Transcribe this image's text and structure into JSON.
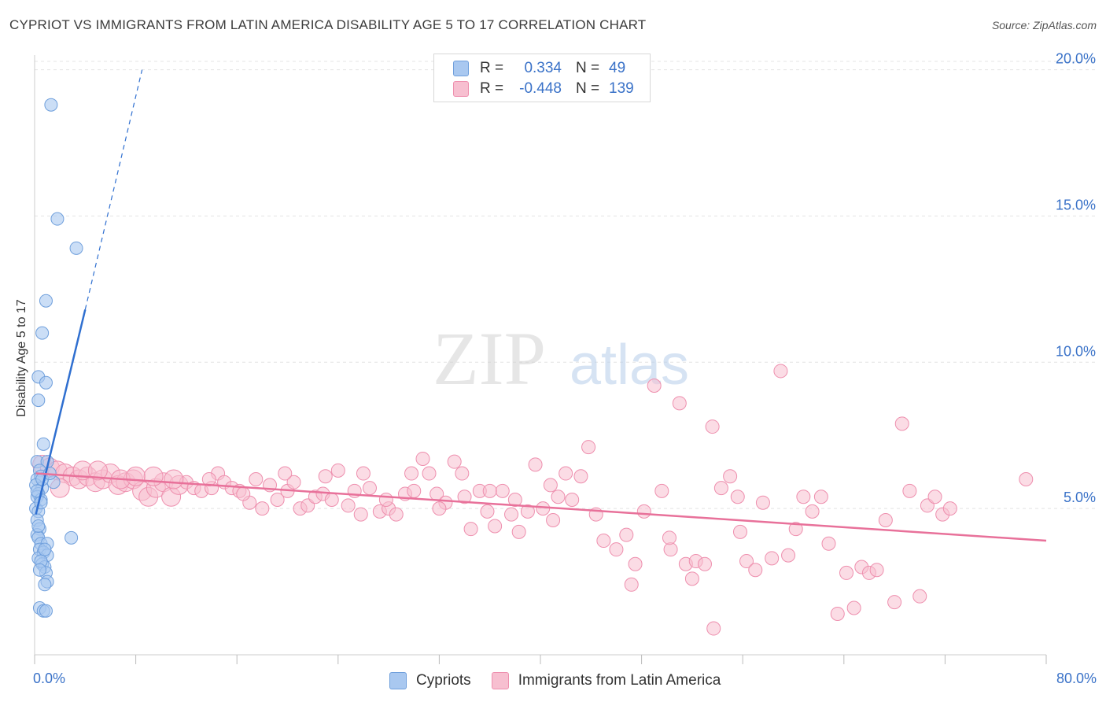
{
  "title": "CYPRIOT VS IMMIGRANTS FROM LATIN AMERICA DISABILITY AGE 5 TO 17 CORRELATION CHART",
  "source": "Source: ZipAtlas.com",
  "watermark": {
    "zip": "ZIP",
    "atlas": "atlas"
  },
  "colors": {
    "cypriot_fill": "#a9c8f0",
    "cypriot_stroke": "#6f9fdc",
    "cypriot_line": "#2f6fd0",
    "latin_fill": "#f7bfd0",
    "latin_stroke": "#ee8fae",
    "latin_line": "#e8719a",
    "axis_text": "#3a72c8",
    "grid": "#e4e4e4"
  },
  "legend_top": [
    {
      "r_label": "R =",
      "r_value": "0.334",
      "n_label": "N =",
      "n_value": "49"
    },
    {
      "r_label": "R =",
      "r_value": "-0.448",
      "n_label": "N =",
      "n_value": "139"
    }
  ],
  "legend_bottom": [
    "Cypriots",
    "Immigrants from Latin America"
  ],
  "chart_data": {
    "type": "scatter",
    "title": "CYPRIOT VS IMMIGRANTS FROM LATIN AMERICA DISABILITY AGE 5 TO 17 CORRELATION CHART",
    "xlabel": "",
    "ylabel": "Disability Age 5 to 17",
    "xlim": [
      0,
      80
    ],
    "ylim": [
      0,
      20.5
    ],
    "x_tick_labels": [
      "0.0%",
      "80.0%"
    ],
    "y_tick_labels": [
      "5.0%",
      "10.0%",
      "15.0%",
      "20.0%"
    ],
    "y_ticks": [
      5,
      10,
      15,
      20
    ],
    "grid": true,
    "legend_placement": "top-center",
    "series": [
      {
        "name": "Cypriots",
        "r": 0.334,
        "n": 49,
        "trend": {
          "x0": 0.1,
          "y0": 4.8,
          "x1": 4.0,
          "y1": 11.8,
          "dash_x1": 8.5,
          "dash_y1": 20.0
        },
        "points": [
          [
            1.3,
            18.8
          ],
          [
            1.8,
            14.9
          ],
          [
            3.3,
            13.9
          ],
          [
            0.9,
            12.1
          ],
          [
            0.6,
            11.0
          ],
          [
            0.3,
            9.5
          ],
          [
            0.9,
            9.3
          ],
          [
            0.3,
            8.7
          ],
          [
            0.7,
            7.2
          ],
          [
            0.2,
            6.6
          ],
          [
            1.0,
            6.6
          ],
          [
            0.4,
            6.3
          ],
          [
            0.2,
            6.0
          ],
          [
            0.5,
            6.1
          ],
          [
            1.5,
            5.9
          ],
          [
            0.1,
            5.8
          ],
          [
            0.6,
            5.7
          ],
          [
            0.3,
            5.5
          ],
          [
            0.2,
            5.4
          ],
          [
            0.5,
            5.3
          ],
          [
            0.1,
            5.0
          ],
          [
            0.3,
            4.9
          ],
          [
            0.2,
            4.6
          ],
          [
            0.4,
            4.3
          ],
          [
            0.2,
            4.1
          ],
          [
            0.3,
            4.0
          ],
          [
            2.9,
            4.0
          ],
          [
            0.5,
            3.8
          ],
          [
            1.0,
            3.8
          ],
          [
            0.4,
            3.6
          ],
          [
            0.7,
            3.5
          ],
          [
            1.0,
            3.4
          ],
          [
            0.3,
            3.3
          ],
          [
            0.6,
            3.1
          ],
          [
            0.8,
            3.0
          ],
          [
            0.5,
            3.2
          ],
          [
            0.9,
            2.8
          ],
          [
            1.0,
            2.5
          ],
          [
            0.8,
            2.4
          ],
          [
            0.4,
            1.6
          ],
          [
            0.7,
            1.5
          ],
          [
            0.9,
            1.5
          ],
          [
            0.2,
            5.6
          ],
          [
            0.6,
            6.0
          ],
          [
            1.2,
            6.2
          ],
          [
            0.3,
            4.4
          ],
          [
            0.8,
            3.6
          ],
          [
            0.4,
            2.9
          ],
          [
            0.5,
            5.2
          ]
        ]
      },
      {
        "name": "Immigrants from Latin America",
        "r": -0.448,
        "n": 139,
        "trend": {
          "x0": 0.1,
          "y0": 6.2,
          "x1": 80,
          "y1": 3.9
        },
        "points": [
          [
            0.6,
            6.5
          ],
          [
            1.2,
            6.4
          ],
          [
            1.8,
            6.3
          ],
          [
            2.4,
            6.2
          ],
          [
            3.0,
            6.1
          ],
          [
            3.5,
            6.0
          ],
          [
            4.2,
            6.1
          ],
          [
            4.8,
            5.9
          ],
          [
            5.4,
            6.0
          ],
          [
            6.0,
            6.2
          ],
          [
            6.6,
            5.8
          ],
          [
            7.2,
            5.9
          ],
          [
            7.8,
            6.0
          ],
          [
            8.5,
            5.6
          ],
          [
            9.0,
            5.4
          ],
          [
            9.6,
            5.7
          ],
          [
            10.2,
            5.9
          ],
          [
            10.8,
            5.4
          ],
          [
            11.4,
            5.8
          ],
          [
            12.0,
            5.9
          ],
          [
            12.6,
            5.7
          ],
          [
            13.2,
            5.6
          ],
          [
            14.0,
            5.7
          ],
          [
            14.5,
            6.2
          ],
          [
            15.0,
            5.9
          ],
          [
            15.6,
            5.7
          ],
          [
            16.2,
            5.6
          ],
          [
            17.0,
            5.2
          ],
          [
            17.5,
            6.0
          ],
          [
            18.0,
            5.0
          ],
          [
            18.6,
            5.8
          ],
          [
            19.2,
            5.3
          ],
          [
            20.0,
            5.6
          ],
          [
            20.5,
            5.9
          ],
          [
            21.0,
            5.0
          ],
          [
            21.6,
            5.1
          ],
          [
            22.2,
            5.4
          ],
          [
            22.8,
            5.5
          ],
          [
            23.5,
            5.3
          ],
          [
            24.0,
            6.3
          ],
          [
            24.8,
            5.1
          ],
          [
            25.3,
            5.6
          ],
          [
            26.0,
            6.2
          ],
          [
            26.5,
            5.7
          ],
          [
            27.3,
            4.9
          ],
          [
            28.0,
            5.0
          ],
          [
            28.6,
            4.8
          ],
          [
            29.3,
            5.5
          ],
          [
            30.0,
            5.6
          ],
          [
            30.7,
            6.7
          ],
          [
            31.2,
            6.2
          ],
          [
            31.8,
            5.5
          ],
          [
            32.5,
            5.2
          ],
          [
            33.2,
            6.6
          ],
          [
            33.8,
            6.2
          ],
          [
            34.5,
            4.3
          ],
          [
            35.2,
            5.6
          ],
          [
            35.8,
            4.9
          ],
          [
            36.4,
            4.4
          ],
          [
            37.0,
            5.6
          ],
          [
            37.7,
            4.8
          ],
          [
            38.3,
            4.2
          ],
          [
            39.0,
            4.9
          ],
          [
            39.6,
            6.5
          ],
          [
            40.2,
            5.0
          ],
          [
            40.8,
            5.8
          ],
          [
            41.4,
            5.4
          ],
          [
            42.0,
            6.2
          ],
          [
            42.5,
            5.3
          ],
          [
            43.2,
            6.1
          ],
          [
            43.8,
            7.1
          ],
          [
            44.4,
            4.8
          ],
          [
            45.0,
            3.9
          ],
          [
            46.0,
            3.6
          ],
          [
            46.8,
            4.1
          ],
          [
            47.5,
            3.1
          ],
          [
            48.2,
            4.9
          ],
          [
            49.0,
            9.2
          ],
          [
            49.6,
            5.6
          ],
          [
            50.3,
            3.6
          ],
          [
            51.0,
            8.6
          ],
          [
            51.5,
            3.1
          ],
          [
            52.3,
            3.2
          ],
          [
            53.0,
            3.1
          ],
          [
            53.6,
            7.8
          ],
          [
            54.3,
            5.7
          ],
          [
            55.0,
            6.1
          ],
          [
            55.6,
            5.4
          ],
          [
            56.3,
            3.2
          ],
          [
            57.0,
            2.9
          ],
          [
            57.6,
            5.2
          ],
          [
            58.3,
            3.3
          ],
          [
            59.0,
            9.7
          ],
          [
            59.6,
            3.4
          ],
          [
            60.2,
            4.3
          ],
          [
            60.8,
            5.4
          ],
          [
            61.5,
            4.9
          ],
          [
            62.2,
            5.4
          ],
          [
            62.8,
            3.8
          ],
          [
            63.5,
            1.4
          ],
          [
            64.2,
            2.8
          ],
          [
            64.8,
            1.6
          ],
          [
            65.4,
            3.0
          ],
          [
            66.0,
            2.8
          ],
          [
            66.6,
            2.9
          ],
          [
            67.3,
            4.6
          ],
          [
            68.0,
            1.8
          ],
          [
            68.6,
            7.9
          ],
          [
            69.2,
            5.6
          ],
          [
            70.0,
            2.0
          ],
          [
            70.6,
            5.1
          ],
          [
            71.2,
            5.4
          ],
          [
            71.8,
            4.8
          ],
          [
            72.4,
            5.0
          ],
          [
            78.4,
            6.0
          ],
          [
            47.2,
            2.4
          ],
          [
            50.2,
            4.0
          ],
          [
            52.0,
            2.6
          ],
          [
            53.7,
            0.9
          ],
          [
            55.8,
            4.2
          ],
          [
            2.0,
            5.7
          ],
          [
            3.8,
            6.3
          ],
          [
            5.0,
            6.3
          ],
          [
            6.8,
            6.0
          ],
          [
            8.0,
            6.1
          ],
          [
            9.4,
            6.1
          ],
          [
            11.0,
            6.0
          ],
          [
            13.8,
            6.0
          ],
          [
            16.5,
            5.5
          ],
          [
            19.8,
            6.2
          ],
          [
            23.0,
            6.1
          ],
          [
            25.8,
            4.8
          ],
          [
            27.8,
            5.3
          ],
          [
            29.8,
            6.2
          ],
          [
            32.0,
            5.0
          ],
          [
            34.0,
            5.4
          ],
          [
            36.0,
            5.6
          ],
          [
            38.0,
            5.3
          ],
          [
            41.0,
            4.6
          ]
        ]
      }
    ]
  }
}
